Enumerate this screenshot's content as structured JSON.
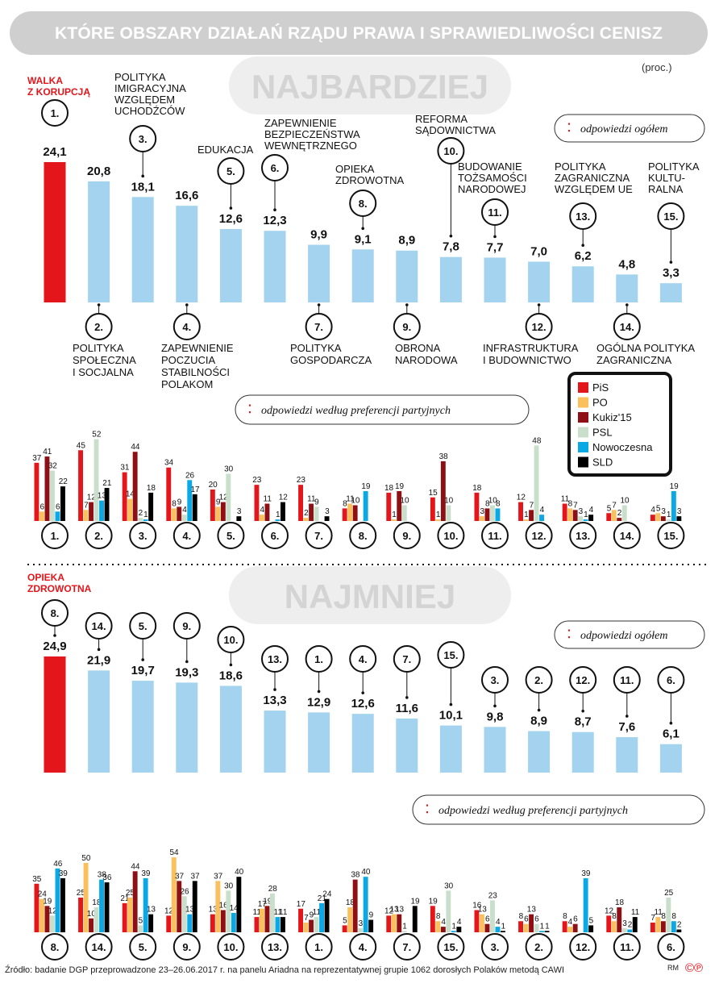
{
  "header": {
    "title": "KTÓRE OBSZARY DZIAŁAŃ RZĄDU PRAWA I SPRAWIEDLIWOŚCI CENISZ",
    "unit": "(proc.)"
  },
  "footer": {
    "source": "Źródło: badanie DGP przeprowadzone 23–26.06.2017 r. na panelu Ariadna na reprezentatywnej grupie 1062 dorosłych Polaków metodą CAWI",
    "credit": "RM",
    "logo": "©℗"
  },
  "colors": {
    "highlight": "#e3161b",
    "overall_bar": "#a3d3ef",
    "title_bg": "#cfcfcf",
    "section_title": "#d4d4d4"
  },
  "chart_data": [
    {
      "type": "bar",
      "section_title": "NAJBARDZIEJ",
      "legend_label": "odpowiedzi ogółem",
      "categories": [
        "1.",
        "2.",
        "3.",
        "4.",
        "5.",
        "6.",
        "7.",
        "8.",
        "9.",
        "10.",
        "11.",
        "12.",
        "13.",
        "14.",
        "15."
      ],
      "values": [
        24.1,
        20.8,
        18.1,
        16.6,
        12.6,
        12.3,
        9.9,
        9.1,
        8.9,
        7.8,
        7.7,
        7.0,
        6.2,
        4.8,
        3.3
      ],
      "value_labels": [
        "24,1",
        "20,8",
        "18,1",
        "16,6",
        "12,6",
        "12,3",
        "9,9",
        "9,1",
        "8,9",
        "7,8",
        "7,7",
        "7,0",
        "6,2",
        "4,8",
        "3,3"
      ],
      "category_labels": [
        "WALKA Z KORUPCJĄ",
        "POLITYKA SPOŁECZNA I SOCJALNA",
        "POLITYKA IMIGRACYJNA WZGLĘDEM UCHODŹCÓW",
        "ZAPEWNIENIE POCZUCIA STABILNOŚCI POLAKOM",
        "EDUKACJA",
        "ZAPEWNIENIE BEZPIECZEŃSTWA WEWNĘTRZNEGO",
        "POLITYKA GOSPODARCZA",
        "OPIEKA ZDROWOTNA",
        "OBRONA NARODOWA",
        "REFORMA SĄDOWNICTWA",
        "BUDOWANIE TOŻSAMOŚCI NARODOWEJ",
        "INFRASTRUKTURA I BUDOWNICTWO",
        "POLITYKA ZAGRANICZNA WZGLĘDEM UE",
        "OGÓLNA POLITYKA ZAGRANICZNA",
        "POLITYKA KULTURALNA"
      ]
    },
    {
      "type": "bar",
      "legend_label": "odpowiedzi według preferencji partyjnych",
      "categories": [
        "1.",
        "2.",
        "3.",
        "4.",
        "5.",
        "6.",
        "7.",
        "8.",
        "9.",
        "10.",
        "11.",
        "12.",
        "13.",
        "14.",
        "15."
      ],
      "series": [
        {
          "name": "PiS",
          "color": "#e3161b",
          "values": [
            37,
            45,
            31,
            34,
            20,
            23,
            23,
            8,
            18,
            15,
            18,
            12,
            11,
            5,
            4
          ]
        },
        {
          "name": "PO",
          "color": "#fbbf5c",
          "values": [
            6,
            7,
            14,
            8,
            9,
            4,
            2,
            11,
            1,
            1,
            3,
            1,
            8,
            7,
            5
          ]
        },
        {
          "name": "Kukiz'15",
          "color": "#8e1014",
          "values": [
            41,
            12,
            44,
            9,
            12,
            11,
            11,
            10,
            19,
            38,
            8,
            7,
            7,
            2,
            3
          ]
        },
        {
          "name": "PSL",
          "color": "#c9dfcc",
          "values": [
            32,
            52,
            2,
            4,
            30,
            null,
            9,
            null,
            10,
            10,
            10,
            48,
            3,
            10,
            1
          ]
        },
        {
          "name": "Nowoczesna",
          "color": "#0aa8e4",
          "values": [
            6,
            13,
            1,
            26,
            null,
            1,
            null,
            19,
            null,
            null,
            8,
            4,
            1,
            null,
            19
          ]
        },
        {
          "name": "SLD",
          "color": "#000000",
          "values": [
            22,
            21,
            18,
            17,
            3,
            12,
            3,
            null,
            null,
            null,
            null,
            null,
            4,
            null,
            3
          ]
        }
      ]
    },
    {
      "type": "bar",
      "section_title": "NAJMNIEJ",
      "legend_label": "odpowiedzi ogółem",
      "categories": [
        "8.",
        "14.",
        "5.",
        "9.",
        "10.",
        "13.",
        "1.",
        "4.",
        "7.",
        "15.",
        "3.",
        "2.",
        "12.",
        "11.",
        "6."
      ],
      "values": [
        24.9,
        21.9,
        19.7,
        19.3,
        18.6,
        13.3,
        12.9,
        12.6,
        11.6,
        10.1,
        9.8,
        8.9,
        8.7,
        7.6,
        6.1
      ],
      "value_labels": [
        "24,9",
        "21,9",
        "19,7",
        "19,3",
        "18,6",
        "13,3",
        "12,9",
        "12,6",
        "11,6",
        "10,1",
        "9,8",
        "8,9",
        "8,7",
        "7,6",
        "6,1"
      ],
      "highlight_label": "OPIEKA ZDROWOTNA"
    },
    {
      "type": "bar",
      "legend_label": "odpowiedzi według preferencji partyjnych",
      "categories": [
        "8.",
        "14.",
        "5.",
        "9.",
        "10.",
        "13.",
        "1.",
        "4.",
        "7.",
        "15.",
        "3.",
        "2.",
        "12.",
        "11.",
        "6."
      ],
      "series": [
        {
          "name": "PiS",
          "values": [
            35,
            25,
            21,
            12,
            13,
            11,
            17,
            5,
            12,
            19,
            16,
            8,
            8,
            12,
            7
          ]
        },
        {
          "name": "PO",
          "values": [
            24,
            50,
            25,
            54,
            37,
            17,
            7,
            18,
            13,
            8,
            13,
            6,
            4,
            8,
            11
          ]
        },
        {
          "name": "Kukiz'15",
          "values": [
            19,
            10,
            44,
            37,
            16,
            19,
            9,
            38,
            13,
            4,
            6,
            13,
            6,
            18,
            8
          ]
        },
        {
          "name": "PSL",
          "values": [
            12,
            18,
            5,
            26,
            30,
            28,
            11,
            3,
            1,
            30,
            23,
            6,
            null,
            3,
            25
          ]
        },
        {
          "name": "Nowoczesna",
          "values": [
            46,
            38,
            39,
            13,
            14,
            11,
            21,
            40,
            null,
            1,
            4,
            1,
            39,
            2,
            8
          ]
        },
        {
          "name": "SLD",
          "values": [
            39,
            36,
            13,
            37,
            40,
            11,
            24,
            9,
            19,
            4,
            1,
            1,
            5,
            11,
            2
          ]
        }
      ]
    }
  ]
}
